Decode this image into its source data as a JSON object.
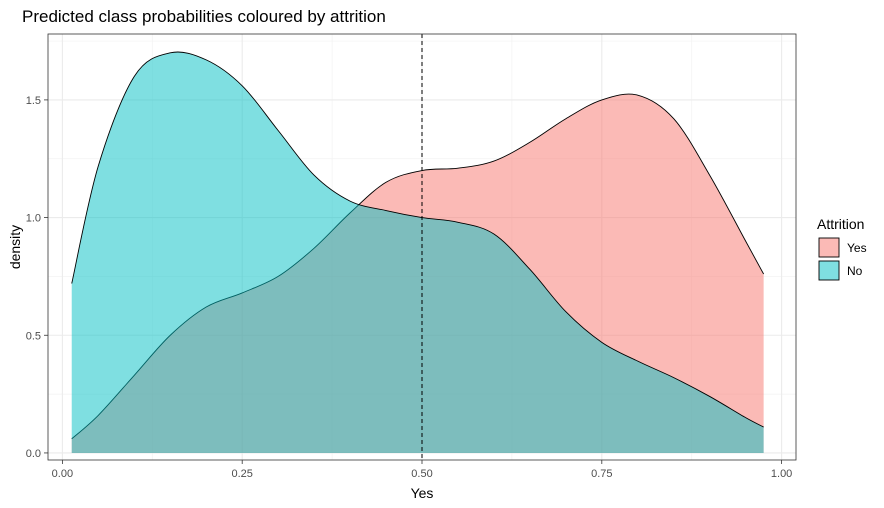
{
  "chart_data": {
    "type": "area",
    "title": "Predicted class probabilities coloured by attrition",
    "xlabel": "Yes",
    "ylabel": "density",
    "xlim": [
      -0.02,
      1.02
    ],
    "ylim": [
      -0.03,
      1.78
    ],
    "x_ticks": [
      0.0,
      0.25,
      0.5,
      0.75,
      1.0
    ],
    "x_tick_labels": [
      "0.00",
      "0.25",
      "0.50",
      "0.75",
      "1.00"
    ],
    "y_ticks": [
      0.0,
      0.5,
      1.0,
      1.5
    ],
    "y_tick_labels": [
      "0.0",
      "0.5",
      "1.0",
      "1.5"
    ],
    "grid": true,
    "legend_position": "right",
    "legend_title": "Attrition",
    "vline": {
      "x": 0.5,
      "style": "dashed"
    },
    "series": [
      {
        "name": "Yes",
        "color": "#F8766D",
        "x": [
          0.013,
          0.05,
          0.1,
          0.15,
          0.2,
          0.25,
          0.3,
          0.35,
          0.4,
          0.45,
          0.5,
          0.55,
          0.6,
          0.65,
          0.7,
          0.75,
          0.8,
          0.85,
          0.9,
          0.95,
          0.975
        ],
        "y": [
          0.06,
          0.16,
          0.33,
          0.5,
          0.62,
          0.68,
          0.75,
          0.87,
          1.02,
          1.15,
          1.2,
          1.21,
          1.24,
          1.32,
          1.42,
          1.5,
          1.52,
          1.42,
          1.18,
          0.9,
          0.76
        ]
      },
      {
        "name": "No",
        "color": "#00BFC4",
        "x": [
          0.013,
          0.05,
          0.1,
          0.15,
          0.2,
          0.25,
          0.3,
          0.35,
          0.4,
          0.45,
          0.5,
          0.55,
          0.6,
          0.65,
          0.7,
          0.75,
          0.8,
          0.85,
          0.9,
          0.95,
          0.975
        ],
        "y": [
          0.72,
          1.22,
          1.6,
          1.7,
          1.67,
          1.56,
          1.37,
          1.18,
          1.07,
          1.03,
          1.0,
          0.98,
          0.93,
          0.78,
          0.6,
          0.47,
          0.39,
          0.32,
          0.24,
          0.15,
          0.11
        ]
      }
    ]
  }
}
